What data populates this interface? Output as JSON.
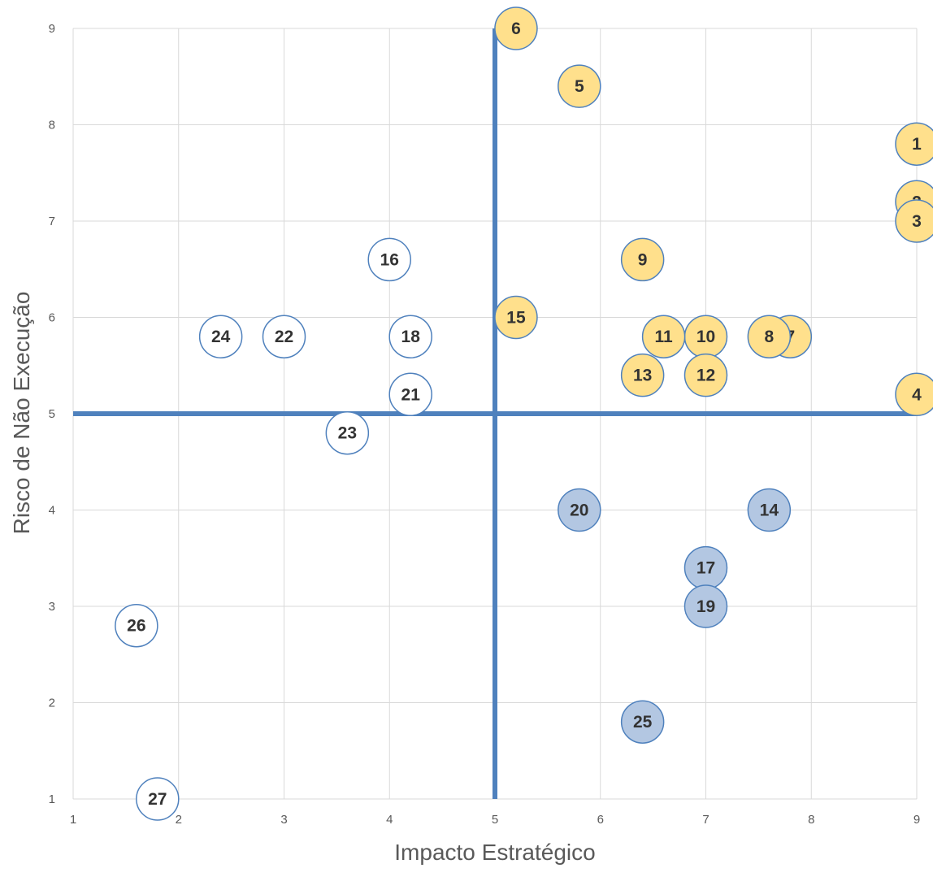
{
  "chart_data": {
    "type": "scatter",
    "title": "",
    "xlabel": "Impacto Estratégico",
    "ylabel": "Risco de Não Execução",
    "xlim": [
      1,
      9
    ],
    "ylim": [
      1,
      9
    ],
    "x_ticks": [
      "1",
      "2",
      "3",
      "4",
      "5",
      "6",
      "7",
      "8",
      "9"
    ],
    "y_ticks": [
      "1",
      "2",
      "3",
      "4",
      "5",
      "6",
      "7",
      "8",
      "9"
    ],
    "grid": true,
    "reference_lines": {
      "x": 5,
      "y": 5,
      "color": "#4F81BD"
    },
    "series": [
      {
        "group": "high-risk-high-impact",
        "fill": "#FFE08C",
        "stroke": "#4F81BD",
        "points": [
          {
            "label": "1",
            "x": 9.0,
            "y": 7.8
          },
          {
            "label": "2",
            "x": 9.0,
            "y": 7.2
          },
          {
            "label": "3",
            "x": 9.0,
            "y": 7.0
          },
          {
            "label": "4",
            "x": 9.0,
            "y": 5.2
          },
          {
            "label": "5",
            "x": 5.8,
            "y": 8.4
          },
          {
            "label": "6",
            "x": 5.2,
            "y": 9.0
          },
          {
            "label": "7",
            "x": 7.8,
            "y": 5.8
          },
          {
            "label": "8",
            "x": 7.6,
            "y": 5.8
          },
          {
            "label": "9",
            "x": 6.4,
            "y": 6.6
          },
          {
            "label": "10",
            "x": 7.0,
            "y": 5.8
          },
          {
            "label": "11",
            "x": 6.6,
            "y": 5.8
          },
          {
            "label": "12",
            "x": 7.0,
            "y": 5.4
          },
          {
            "label": "13",
            "x": 6.4,
            "y": 5.4
          },
          {
            "label": "15",
            "x": 5.2,
            "y": 6.0
          }
        ]
      },
      {
        "group": "low-risk-high-impact",
        "fill": "#B3C7E2",
        "stroke": "#4F81BD",
        "points": [
          {
            "label": "14",
            "x": 7.6,
            "y": 4.0
          },
          {
            "label": "17",
            "x": 7.0,
            "y": 3.4
          },
          {
            "label": "19",
            "x": 7.0,
            "y": 3.0
          },
          {
            "label": "20",
            "x": 5.8,
            "y": 4.0
          },
          {
            "label": "25",
            "x": 6.4,
            "y": 1.8
          }
        ]
      },
      {
        "group": "low-impact",
        "fill": "#FFFFFF",
        "stroke": "#4F81BD",
        "points": [
          {
            "label": "16",
            "x": 4.0,
            "y": 6.6
          },
          {
            "label": "18",
            "x": 4.2,
            "y": 5.8
          },
          {
            "label": "21",
            "x": 4.2,
            "y": 5.2
          },
          {
            "label": "22",
            "x": 3.0,
            "y": 5.8
          },
          {
            "label": "23",
            "x": 3.6,
            "y": 4.8
          },
          {
            "label": "24",
            "x": 2.4,
            "y": 5.8
          },
          {
            "label": "26",
            "x": 1.6,
            "y": 2.8
          },
          {
            "label": "27",
            "x": 1.8,
            "y": 1.0
          }
        ]
      }
    ]
  }
}
